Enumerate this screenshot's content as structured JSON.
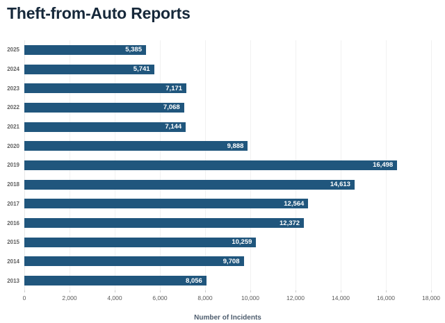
{
  "page": {
    "title": "Theft-from-Auto Reports"
  },
  "chart_data": {
    "type": "bar",
    "orientation": "horizontal",
    "title": "Theft-from-Auto Reports",
    "categories": [
      "2025",
      "2024",
      "2023",
      "2022",
      "2021",
      "2020",
      "2019",
      "2018",
      "2017",
      "2016",
      "2015",
      "2014",
      "2013"
    ],
    "values": [
      5385,
      5741,
      7171,
      7068,
      7144,
      9888,
      16498,
      14613,
      12564,
      12372,
      10259,
      9708,
      8056
    ],
    "value_labels": [
      "5,385",
      "5,741",
      "7,171",
      "7,068",
      "7,144",
      "9,888",
      "16,498",
      "14,613",
      "12,564",
      "12,372",
      "10,259",
      "9,708",
      "8,056"
    ],
    "xlabel": "Number of Incidents",
    "ylabel": "",
    "xlim": [
      0,
      18000
    ],
    "xticks": [
      0,
      2000,
      4000,
      6000,
      8000,
      10000,
      12000,
      14000,
      16000,
      18000
    ],
    "xtick_labels": [
      "0",
      "2,000",
      "4,000",
      "6,000",
      "8,000",
      "10,000",
      "12,000",
      "14,000",
      "16,000",
      "18,000"
    ],
    "grid": true,
    "legend": "none",
    "colors": {
      "bar": "#20567D",
      "bar_label": "#FFFFFF",
      "title": "#16283A",
      "axis_title": "#4E5D6E",
      "tick_label": "#5A5A5A",
      "year_label": "#5F5F5F",
      "gridline": "#F1F1F1",
      "background": "#FFFFFF"
    }
  }
}
